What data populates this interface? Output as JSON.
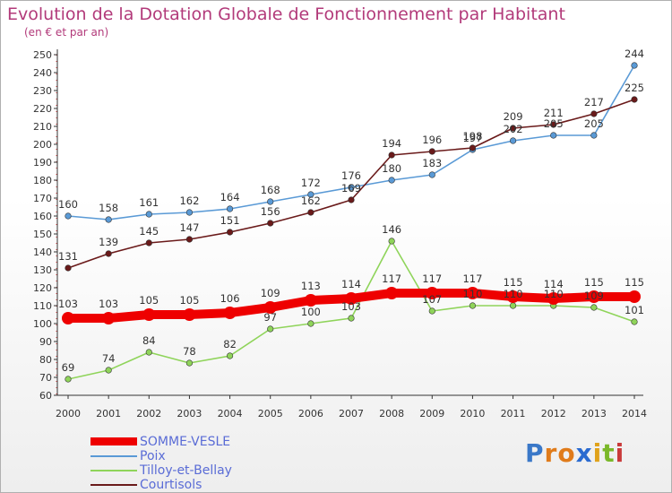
{
  "title": "Evolution de la Dotation Globale de Fonctionnement par Habitant",
  "subtitle": "(en € et par an)",
  "brand": {
    "text": "Proxiti",
    "letters": [
      {
        "ch": "P",
        "color": "#3a78c8"
      },
      {
        "ch": "r",
        "color": "#e07b1a"
      },
      {
        "ch": "o",
        "color": "#e07b1a"
      },
      {
        "ch": "x",
        "color": "#2a6ad0"
      },
      {
        "ch": "i",
        "color": "#e0a21a"
      },
      {
        "ch": "t",
        "color": "#7ab82a"
      },
      {
        "ch": "i",
        "color": "#c93a3a"
      }
    ]
  },
  "chart_data": {
    "type": "line",
    "title": "Evolution de la Dotation Globale de Fonctionnement par Habitant",
    "subtitle": "(en € et par an)",
    "xlabel": "",
    "ylabel": "",
    "ylim": [
      60,
      250
    ],
    "ytick_step": 10,
    "grid": false,
    "legend_position": "bottom-left",
    "x": [
      "2000",
      "2001",
      "2002",
      "2003",
      "2004",
      "2005",
      "2006",
      "2007",
      "2008",
      "2009",
      "2010",
      "2011",
      "2012",
      "2013",
      "2014"
    ],
    "series": [
      {
        "name": "SOMME-VESLE",
        "color": "#ee0000",
        "thick": true,
        "values": [
          103,
          103,
          105,
          105,
          106,
          109,
          113,
          114,
          117,
          117,
          117,
          115,
          114,
          115,
          115
        ]
      },
      {
        "name": "Poix",
        "color": "#5a9ad6",
        "thick": false,
        "values": [
          160,
          158,
          161,
          162,
          164,
          168,
          172,
          176,
          180,
          183,
          197,
          202,
          205,
          205,
          244
        ]
      },
      {
        "name": "Tilloy-et-Bellay",
        "color": "#8fd45a",
        "thick": false,
        "values": [
          69,
          74,
          84,
          78,
          82,
          97,
          100,
          103,
          146,
          107,
          110,
          110,
          110,
          109,
          101
        ]
      },
      {
        "name": "Courtisols",
        "color": "#6a1a1a",
        "thick": false,
        "values": [
          131,
          139,
          145,
          147,
          151,
          156,
          162,
          169,
          194,
          196,
          198,
          209,
          211,
          217,
          225
        ]
      }
    ]
  }
}
